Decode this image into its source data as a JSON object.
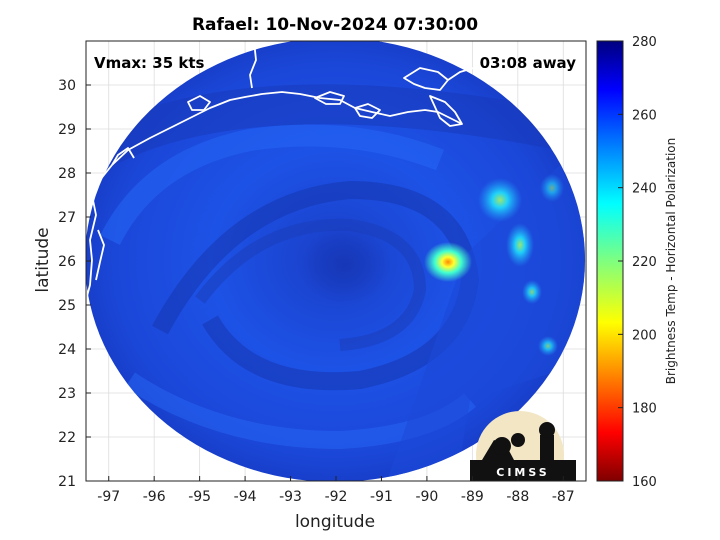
{
  "title": "Rafael: 10-Nov-2024 07:30:00",
  "annotations": {
    "vmax": "Vmax: 35 kts",
    "time_away": "03:08 away"
  },
  "axes": {
    "xlabel": "longitude",
    "ylabel": "latitude",
    "x_ticks": [
      "-97",
      "-96",
      "-95",
      "-94",
      "-93",
      "-92",
      "-91",
      "-90",
      "-89",
      "-88",
      "-87"
    ],
    "y_ticks": [
      "21",
      "22",
      "23",
      "24",
      "25",
      "26",
      "27",
      "28",
      "29",
      "30"
    ],
    "xlim": [
      -97.5,
      -86.5
    ],
    "ylim": [
      21,
      31
    ]
  },
  "colorbar": {
    "label": "Brightness Temp - Horizontal Polarization",
    "ticks": [
      "280",
      "260",
      "240",
      "220",
      "200",
      "180",
      "160"
    ],
    "range": [
      160,
      280
    ],
    "colormap": "jet"
  },
  "logo": {
    "text": "CIMSS"
  },
  "colors": {
    "background": "#ffffff",
    "coastline": "#ffffff",
    "swath_core": "#1f4be0"
  }
}
